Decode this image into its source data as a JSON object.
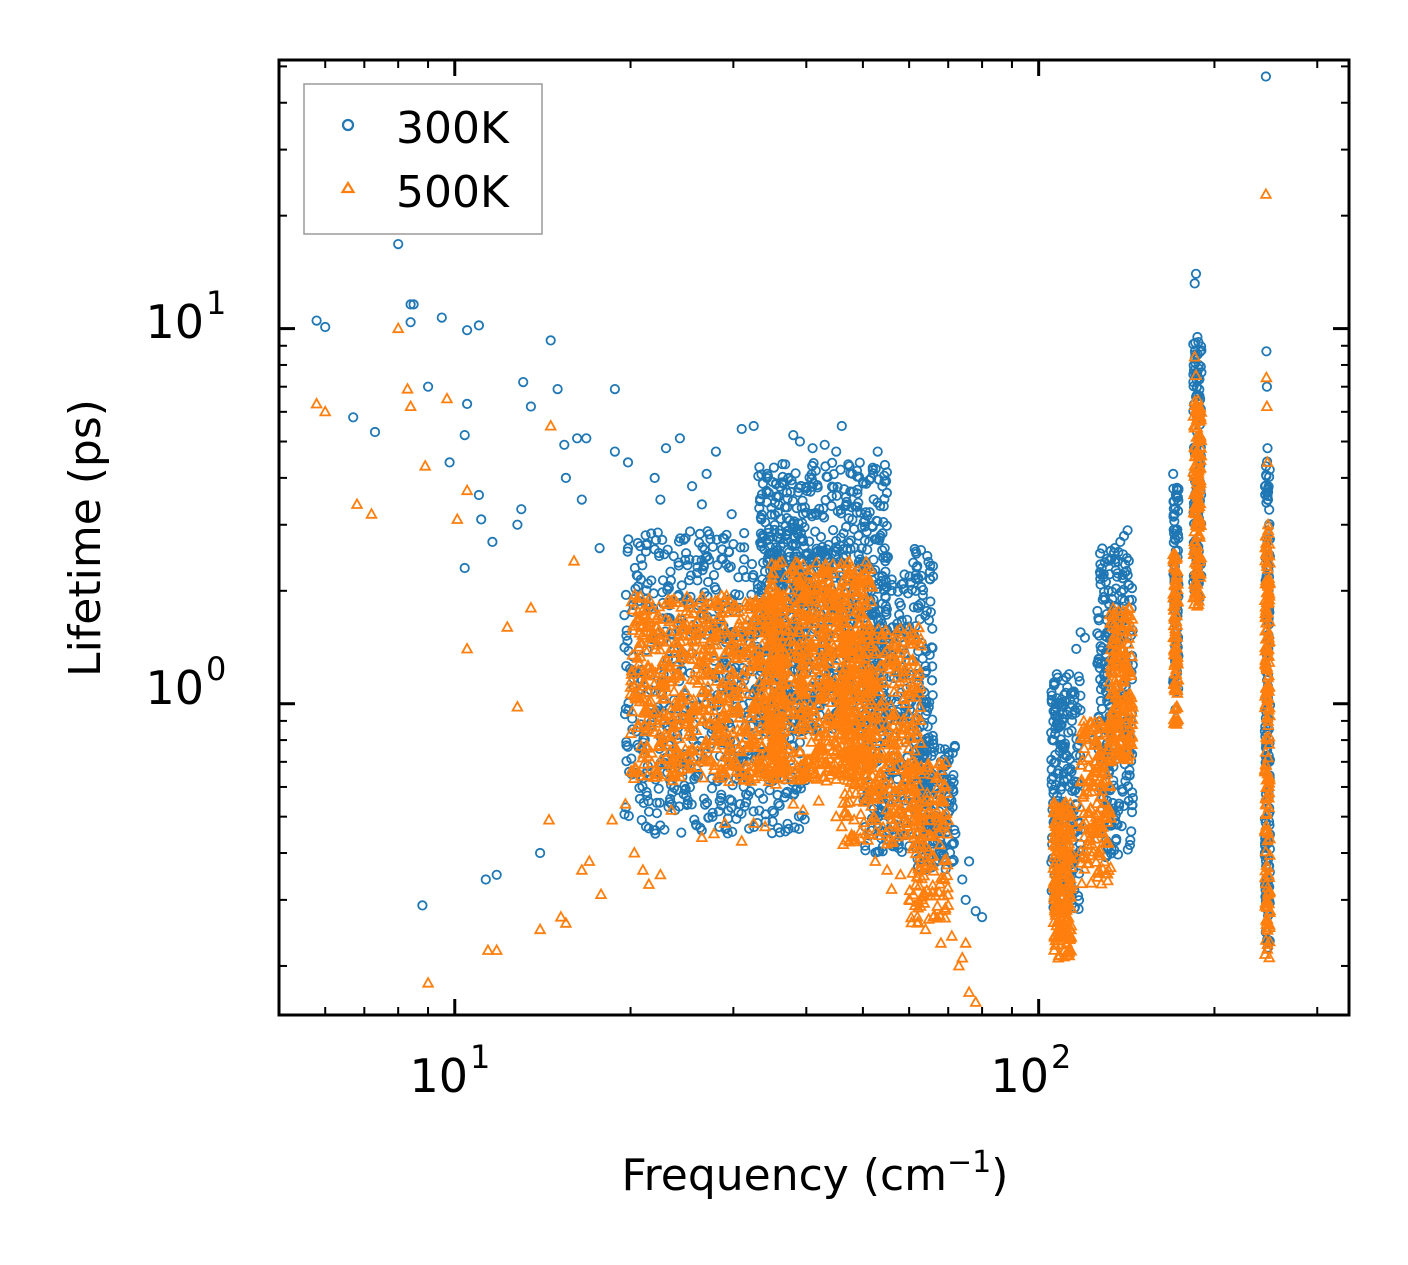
{
  "chart_data": {
    "type": "scatter",
    "title": "",
    "xlabel": "Frequency (cm",
    "xlabel_sup": "−1",
    "xlabel_tail": ")",
    "ylabel": "Lifetime (ps)",
    "xscale": "log",
    "yscale": "log",
    "xlim": [
      5.0,
      340.0
    ],
    "ylim": [
      0.148,
      52.0
    ],
    "x_major_ticks": [
      {
        "value": 10,
        "base": "10",
        "exp": "1"
      },
      {
        "value": 100,
        "base": "10",
        "exp": "2"
      }
    ],
    "y_major_ticks": [
      {
        "value": 1,
        "base": "10",
        "exp": "0"
      },
      {
        "value": 10,
        "base": "10",
        "exp": "1"
      }
    ],
    "legend": {
      "position": "top-left"
    },
    "series": [
      {
        "name": "300K",
        "marker": "circle-open",
        "color": "#1f77b4",
        "points": [
          [
            5.8,
            10.5
          ],
          [
            6.0,
            10.1
          ],
          [
            6.7,
            5.8
          ],
          [
            7.3,
            5.3
          ],
          [
            8.0,
            16.8
          ],
          [
            8.4,
            11.6
          ],
          [
            8.5,
            11.6
          ],
          [
            8.4,
            10.4
          ],
          [
            8.8,
            0.29
          ],
          [
            9.0,
            7.0
          ],
          [
            9.5,
            10.7
          ],
          [
            9.8,
            4.4
          ],
          [
            10.5,
            9.9
          ],
          [
            10.5,
            6.3
          ],
          [
            10.4,
            5.2
          ],
          [
            10.4,
            2.3
          ],
          [
            11.0,
            10.2
          ],
          [
            11.1,
            3.1
          ],
          [
            11.0,
            3.6
          ],
          [
            11.3,
            0.34
          ],
          [
            11.8,
            0.35
          ],
          [
            11.6,
            2.7
          ],
          [
            12.8,
            3.0
          ],
          [
            13.1,
            7.2
          ],
          [
            13.5,
            6.2
          ],
          [
            13.0,
            3.3
          ],
          [
            14.0,
            0.4
          ],
          [
            14.6,
            9.3
          ],
          [
            15.0,
            6.9
          ],
          [
            15.4,
            4.9
          ],
          [
            15.5,
            4.0
          ],
          [
            16.2,
            5.1
          ],
          [
            16.8,
            5.1
          ],
          [
            16.5,
            3.5
          ],
          [
            17.7,
            2.6
          ],
          [
            18.8,
            6.9
          ],
          [
            18.8,
            4.7
          ],
          [
            19.8,
            4.4
          ],
          [
            20.5,
            2.2
          ],
          [
            22.0,
            4.0
          ],
          [
            22.5,
            3.5
          ],
          [
            23.0,
            4.8
          ],
          [
            24.3,
            5.1
          ],
          [
            25.5,
            3.8
          ],
          [
            26.5,
            3.4
          ],
          [
            27.0,
            4.1
          ],
          [
            28.0,
            4.7
          ],
          [
            29.8,
            3.2
          ],
          [
            31.0,
            5.4
          ],
          [
            32.5,
            5.5
          ],
          [
            33.5,
            3.1
          ],
          [
            35.0,
            3.9
          ],
          [
            36.0,
            2.9
          ],
          [
            38.0,
            5.2
          ],
          [
            39.0,
            5.0
          ],
          [
            41.0,
            4.8
          ],
          [
            43.0,
            4.9
          ],
          [
            45.0,
            4.7
          ],
          [
            46.0,
            5.5
          ],
          [
            48.0,
            4.1
          ],
          [
            50.0,
            3.9
          ],
          [
            52.0,
            4.2
          ],
          [
            53.0,
            4.7
          ],
          [
            54.0,
            3.8
          ],
          [
            56.0,
            2.0
          ],
          [
            58.0,
            1.5
          ],
          [
            60.0,
            1.3
          ],
          [
            62.0,
            1.2
          ],
          [
            64.0,
            1.0
          ],
          [
            66.0,
            0.78
          ],
          [
            68.0,
            0.7
          ],
          [
            70.0,
            0.74
          ],
          [
            72.0,
            0.45
          ],
          [
            74.0,
            0.34
          ],
          [
            75.0,
            0.3
          ],
          [
            76.0,
            0.38
          ],
          [
            78.0,
            0.28
          ],
          [
            80.0,
            0.27
          ],
          [
            108.0,
            0.55
          ],
          [
            110.0,
            0.48
          ],
          [
            112.0,
            0.63
          ],
          [
            114.0,
            0.9
          ],
          [
            116.0,
            1.4
          ],
          [
            118.0,
            1.55
          ],
          [
            120.0,
            1.5
          ],
          [
            124.0,
            0.8
          ],
          [
            128.0,
            0.7
          ],
          [
            132.0,
            1.1
          ],
          [
            135.0,
            2.6
          ],
          [
            138.0,
            2.7
          ],
          [
            140.0,
            2.8
          ],
          [
            142.0,
            2.9
          ],
          [
            170.0,
            4.1
          ],
          [
            171.0,
            3.2
          ],
          [
            172.0,
            2.9
          ],
          [
            185.0,
            13.2
          ],
          [
            186.0,
            14.0
          ],
          [
            187.0,
            9.5
          ],
          [
            188.0,
            8.0
          ],
          [
            189.0,
            6.5
          ],
          [
            245.0,
            47.0
          ],
          [
            245.5,
            8.7
          ],
          [
            246.0,
            7.0
          ],
          [
            246.5,
            4.8
          ],
          [
            247.0,
            3.5
          ],
          [
            247.5,
            2.5
          ],
          [
            248.0,
            1.5
          ]
        ],
        "dense_regions": [
          {
            "x": [
              19.5,
              40.0
            ],
            "ylog": [
              0.45,
              2.9
            ],
            "n": 750
          },
          {
            "x": [
              33.0,
              55.0
            ],
            "ylog": [
              0.85,
              4.4
            ],
            "n": 750
          },
          {
            "x": [
              50.0,
              66.0
            ],
            "ylog": [
              0.4,
              2.6
            ],
            "n": 380
          },
          {
            "x": [
              62.0,
              72.0
            ],
            "ylog": [
              0.36,
              0.8
            ],
            "n": 130
          },
          {
            "x": [
              105.0,
              118.0
            ],
            "ylog": [
              0.28,
              1.2
            ],
            "n": 220
          },
          {
            "x": [
              126.0,
              145.0
            ],
            "ylog": [
              0.38,
              2.6
            ],
            "n": 280
          },
          {
            "x": [
              170.0,
              173.5
            ],
            "ylog": [
              0.95,
              3.9
            ],
            "n": 90
          },
          {
            "x": [
              184.0,
              190.0
            ],
            "ylog": [
              1.9,
              9.5
            ],
            "n": 130
          },
          {
            "x": [
              244.0,
              249.0
            ],
            "ylog": [
              0.22,
              4.5
            ],
            "n": 160
          }
        ]
      },
      {
        "name": "500K",
        "marker": "triangle-open",
        "color": "#ff7f0e",
        "points": [
          [
            5.8,
            6.3
          ],
          [
            6.0,
            6.0
          ],
          [
            6.8,
            3.4
          ],
          [
            7.2,
            3.2
          ],
          [
            8.0,
            10.0
          ],
          [
            8.3,
            6.9
          ],
          [
            8.4,
            6.2
          ],
          [
            8.9,
            4.3
          ],
          [
            9.0,
            0.18
          ],
          [
            9.7,
            6.5
          ],
          [
            10.1,
            3.1
          ],
          [
            10.5,
            3.7
          ],
          [
            10.5,
            1.4
          ],
          [
            11.4,
            0.22
          ],
          [
            11.8,
            0.22
          ],
          [
            12.3,
            1.6
          ],
          [
            12.8,
            0.98
          ],
          [
            13.5,
            1.8
          ],
          [
            14.0,
            0.25
          ],
          [
            14.6,
            5.5
          ],
          [
            14.5,
            0.49
          ],
          [
            15.2,
            0.27
          ],
          [
            15.5,
            0.26
          ],
          [
            16.0,
            2.4
          ],
          [
            16.5,
            0.36
          ],
          [
            17.0,
            0.38
          ],
          [
            17.8,
            0.31
          ],
          [
            18.6,
            0.49
          ],
          [
            19.6,
            0.54
          ],
          [
            20.3,
            0.4
          ],
          [
            21.0,
            0.36
          ],
          [
            21.5,
            0.33
          ],
          [
            22.5,
            0.35
          ],
          [
            23.5,
            0.52
          ],
          [
            25.0,
            0.67
          ],
          [
            26.5,
            0.44
          ],
          [
            27.8,
            0.45
          ],
          [
            29.0,
            0.48
          ],
          [
            29.5,
            0.62
          ],
          [
            31.0,
            0.43
          ],
          [
            32.5,
            0.48
          ],
          [
            34.0,
            0.47
          ],
          [
            35.5,
            0.61
          ],
          [
            38.0,
            0.54
          ],
          [
            39.5,
            0.52
          ],
          [
            42.0,
            0.55
          ],
          [
            45.0,
            0.5
          ],
          [
            46.0,
            0.47
          ],
          [
            49.0,
            0.55
          ],
          [
            50.5,
            0.45
          ],
          [
            52.5,
            0.38
          ],
          [
            55.0,
            0.36
          ],
          [
            56.0,
            0.32
          ],
          [
            58.0,
            0.35
          ],
          [
            60.0,
            0.3
          ],
          [
            62.0,
            0.27
          ],
          [
            64.0,
            0.25
          ],
          [
            66.0,
            0.27
          ],
          [
            68.0,
            0.23
          ],
          [
            70.0,
            0.29
          ],
          [
            71.0,
            0.24
          ],
          [
            73.0,
            0.2
          ],
          [
            74.0,
            0.21
          ],
          [
            75.0,
            0.23
          ],
          [
            76.0,
            0.17
          ],
          [
            78.0,
            0.16
          ],
          [
            108.0,
            0.21
          ],
          [
            110.0,
            0.24
          ],
          [
            112.0,
            0.3
          ],
          [
            114.0,
            0.4
          ],
          [
            116.0,
            0.47
          ],
          [
            118.0,
            0.53
          ],
          [
            121.0,
            0.6
          ],
          [
            125.0,
            0.48
          ],
          [
            130.0,
            0.44
          ],
          [
            133.0,
            0.7
          ],
          [
            136.0,
            1.0
          ],
          [
            139.0,
            1.4
          ],
          [
            141.0,
            1.7
          ],
          [
            143.0,
            1.8
          ],
          [
            170.0,
            2.5
          ],
          [
            171.0,
            1.5
          ],
          [
            172.0,
            1.2
          ],
          [
            185.0,
            8.4
          ],
          [
            186.0,
            7.5
          ],
          [
            187.0,
            6.0
          ],
          [
            188.0,
            4.0
          ],
          [
            245.0,
            22.8
          ],
          [
            245.5,
            7.4
          ],
          [
            246.0,
            6.2
          ],
          [
            246.5,
            4.4
          ],
          [
            247.0,
            3.0
          ],
          [
            247.5,
            2.0
          ]
        ],
        "dense_regions": [
          {
            "x": [
              20.0,
              37.0
            ],
            "ylog": [
              0.62,
              1.95
            ],
            "n": 750
          },
          {
            "x": [
              34.0,
              52.0
            ],
            "ylog": [
              0.62,
              2.4
            ],
            "n": 750
          },
          {
            "x": [
              46.0,
              63.0
            ],
            "ylog": [
              0.42,
              1.6
            ],
            "n": 420
          },
          {
            "x": [
              60.0,
              70.0
            ],
            "ylog": [
              0.26,
              0.7
            ],
            "n": 150
          },
          {
            "x": [
              106.0,
              114.0
            ],
            "ylog": [
              0.21,
              0.55
            ],
            "n": 210
          },
          {
            "x": [
              118.0,
              133.0
            ],
            "ylog": [
              0.33,
              0.9
            ],
            "n": 160
          },
          {
            "x": [
              132.0,
              145.0
            ],
            "ylog": [
              0.7,
              1.8
            ],
            "n": 180
          },
          {
            "x": [
              170.0,
              173.5
            ],
            "ylog": [
              0.88,
              2.5
            ],
            "n": 90
          },
          {
            "x": [
              184.0,
              190.0
            ],
            "ylog": [
              1.8,
              6.5
            ],
            "n": 130
          },
          {
            "x": [
              244.0,
              249.0
            ],
            "ylog": [
              0.21,
              2.9
            ],
            "n": 170
          }
        ]
      }
    ]
  }
}
